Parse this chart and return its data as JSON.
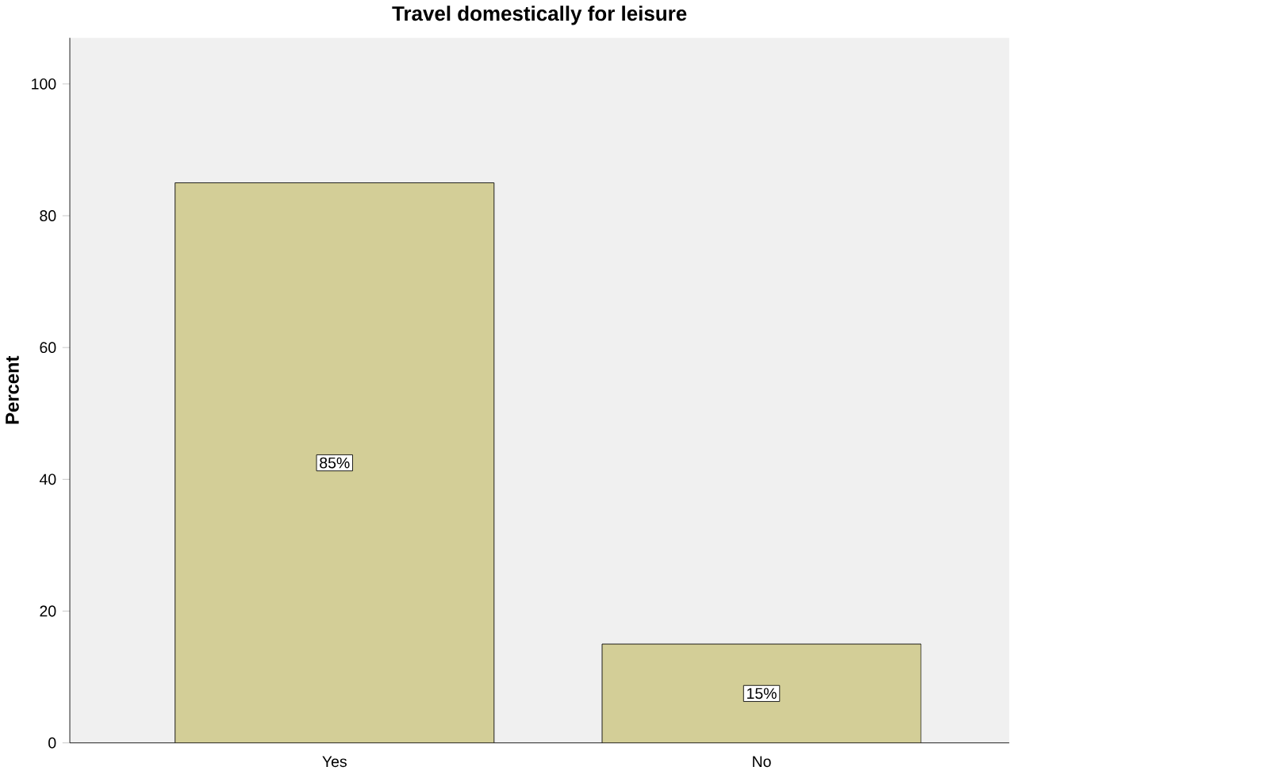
{
  "chart_data": {
    "type": "bar",
    "title": "Travel domestically for leisure",
    "ylabel": "Percent",
    "categories": [
      "Yes",
      "No"
    ],
    "values": [
      85,
      15
    ],
    "value_labels": [
      "85%",
      "15%"
    ],
    "color": "#d3ce97",
    "ylim": [
      0,
      107
    ],
    "yticks": [
      0,
      20,
      40,
      60,
      80,
      100
    ]
  }
}
